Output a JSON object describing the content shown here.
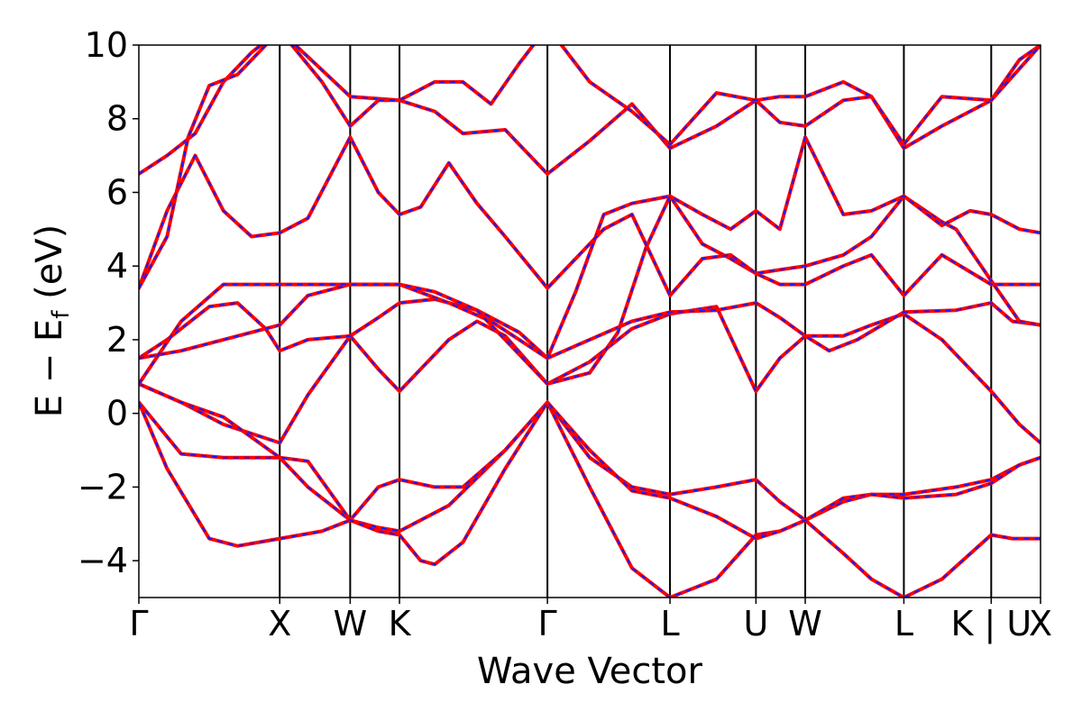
{
  "chart_data": {
    "type": "line",
    "title": "",
    "xlabel": "Wave Vector",
    "ylabel_parts": {
      "main": "E − E",
      "sub": "f",
      "unit": " (eV)"
    },
    "ylim": [
      -5,
      10
    ],
    "yticks": [
      {
        "value": 10,
        "label": "10"
      },
      {
        "value": 8,
        "label": "8"
      },
      {
        "value": 6,
        "label": "6"
      },
      {
        "value": 4,
        "label": "4"
      },
      {
        "value": 2,
        "label": "2"
      },
      {
        "value": 0,
        "label": "0"
      },
      {
        "value": -2,
        "label": "−2"
      },
      {
        "value": -4,
        "label": "−4"
      }
    ],
    "xlim": [
      0,
      6.4
    ],
    "kpoints": [
      {
        "label": "Γ",
        "x": 0.0
      },
      {
        "label": "X",
        "x": 1.0
      },
      {
        "label": "W",
        "x": 1.5
      },
      {
        "label": "K",
        "x": 1.85
      },
      {
        "label": "Γ",
        "x": 2.9
      },
      {
        "label": "L",
        "x": 3.77
      },
      {
        "label": "U",
        "x": 4.38
      },
      {
        "label": "W",
        "x": 4.73
      },
      {
        "label": "L",
        "x": 5.43
      },
      {
        "label": "K | U",
        "x": 6.05
      },
      {
        "label": "X",
        "x": 6.4
      }
    ],
    "grid": false,
    "series": [
      {
        "name": "",
        "points": [
          [
            0,
            0.3
          ],
          [
            0.3,
            -1.1
          ],
          [
            0.6,
            -1.2
          ],
          [
            1.0,
            -1.2
          ],
          [
            1.2,
            -2.0
          ],
          [
            1.5,
            -2.9
          ],
          [
            1.7,
            -3.1
          ],
          [
            1.85,
            -3.2
          ],
          [
            2.2,
            -2.5
          ],
          [
            2.6,
            -1.0
          ],
          [
            2.9,
            0.3
          ],
          [
            3.2,
            -1.2
          ],
          [
            3.5,
            -2.0
          ],
          [
            3.77,
            -2.2
          ],
          [
            4.1,
            -2.0
          ],
          [
            4.38,
            -1.8
          ],
          [
            4.55,
            -2.4
          ],
          [
            4.73,
            -2.9
          ],
          [
            5.0,
            -2.4
          ],
          [
            5.2,
            -2.2
          ],
          [
            5.43,
            -2.2
          ],
          [
            5.8,
            -2.0
          ],
          [
            6.05,
            -1.8
          ],
          [
            6.25,
            -1.4
          ],
          [
            6.4,
            -1.2
          ]
        ]
      },
      {
        "name": "",
        "points": [
          [
            0,
            0.3
          ],
          [
            0.2,
            -1.5
          ],
          [
            0.5,
            -3.4
          ],
          [
            0.7,
            -3.6
          ],
          [
            1.0,
            -3.4
          ],
          [
            1.3,
            -3.2
          ],
          [
            1.5,
            -2.9
          ],
          [
            1.7,
            -2.0
          ],
          [
            1.85,
            -1.8
          ],
          [
            2.1,
            -2.0
          ],
          [
            2.3,
            -2.0
          ],
          [
            2.6,
            -1.0
          ],
          [
            2.9,
            0.3
          ],
          [
            3.2,
            -2.0
          ],
          [
            3.5,
            -4.2
          ],
          [
            3.77,
            -5.0
          ],
          [
            4.1,
            -4.5
          ],
          [
            4.38,
            -3.3
          ],
          [
            4.55,
            -3.2
          ],
          [
            4.73,
            -2.9
          ],
          [
            5.0,
            -3.8
          ],
          [
            5.2,
            -4.5
          ],
          [
            5.43,
            -5.0
          ],
          [
            5.7,
            -4.5
          ],
          [
            6.05,
            -3.3
          ],
          [
            6.2,
            -3.4
          ],
          [
            6.4,
            -3.4
          ]
        ]
      },
      {
        "name": "",
        "points": [
          [
            0,
            0.8
          ],
          [
            0.3,
            0.3
          ],
          [
            0.6,
            -0.3
          ],
          [
            1.0,
            -0.8
          ],
          [
            1.2,
            0.5
          ],
          [
            1.5,
            2.1
          ],
          [
            1.7,
            1.2
          ],
          [
            1.85,
            0.6
          ],
          [
            2.0,
            1.2
          ],
          [
            2.2,
            2.0
          ],
          [
            2.4,
            2.5
          ],
          [
            2.6,
            2.1
          ],
          [
            2.9,
            0.8
          ],
          [
            3.2,
            1.4
          ],
          [
            3.5,
            2.3
          ],
          [
            3.77,
            2.7
          ],
          [
            4.1,
            2.9
          ],
          [
            4.38,
            0.6
          ],
          [
            4.55,
            1.5
          ],
          [
            4.73,
            2.1
          ],
          [
            5.0,
            2.1
          ],
          [
            5.2,
            2.4
          ],
          [
            5.43,
            2.7
          ],
          [
            5.7,
            2.0
          ],
          [
            6.05,
            0.6
          ],
          [
            6.25,
            -0.3
          ],
          [
            6.4,
            -0.8
          ]
        ]
      },
      {
        "name": "",
        "points": [
          [
            0,
            0.8
          ],
          [
            0.3,
            0.3
          ],
          [
            0.6,
            -0.1
          ],
          [
            1.0,
            -1.2
          ],
          [
            1.2,
            -1.3
          ],
          [
            1.5,
            -2.9
          ],
          [
            1.7,
            -3.2
          ],
          [
            1.85,
            -3.3
          ],
          [
            2.0,
            -4.0
          ],
          [
            2.1,
            -4.1
          ],
          [
            2.3,
            -3.5
          ],
          [
            2.6,
            -1.5
          ],
          [
            2.9,
            0.3
          ],
          [
            3.2,
            -1.0
          ],
          [
            3.5,
            -2.1
          ],
          [
            3.77,
            -2.3
          ],
          [
            4.1,
            -2.8
          ],
          [
            4.38,
            -3.4
          ],
          [
            4.55,
            -3.2
          ],
          [
            4.73,
            -2.9
          ],
          [
            5.0,
            -2.3
          ],
          [
            5.2,
            -2.2
          ],
          [
            5.43,
            -2.3
          ],
          [
            5.8,
            -2.2
          ],
          [
            6.05,
            -1.9
          ],
          [
            6.25,
            -1.4
          ],
          [
            6.4,
            -1.2
          ]
        ]
      },
      {
        "name": "",
        "points": [
          [
            0,
            1.5
          ],
          [
            0.2,
            2.0
          ],
          [
            0.5,
            2.9
          ],
          [
            0.7,
            3.0
          ],
          [
            0.9,
            2.3
          ],
          [
            1.0,
            1.7
          ],
          [
            1.2,
            2.0
          ],
          [
            1.5,
            2.1
          ],
          [
            1.7,
            2.6
          ],
          [
            1.85,
            3.0
          ],
          [
            2.1,
            3.1
          ],
          [
            2.4,
            2.8
          ],
          [
            2.7,
            2.2
          ],
          [
            2.9,
            1.5
          ],
          [
            3.2,
            2.0
          ],
          [
            3.5,
            2.5
          ],
          [
            3.77,
            2.75
          ],
          [
            4.1,
            2.8
          ],
          [
            4.38,
            3.0
          ],
          [
            4.55,
            2.6
          ],
          [
            4.73,
            2.1
          ],
          [
            4.9,
            1.7
          ],
          [
            5.1,
            2.0
          ],
          [
            5.43,
            2.75
          ],
          [
            5.8,
            2.8
          ],
          [
            6.05,
            3.0
          ],
          [
            6.2,
            2.5
          ],
          [
            6.4,
            2.4
          ]
        ]
      },
      {
        "name": "",
        "points": [
          [
            0,
            1.5
          ],
          [
            0.3,
            1.7
          ],
          [
            0.6,
            2.0
          ],
          [
            1.0,
            2.4
          ],
          [
            1.2,
            3.2
          ],
          [
            1.5,
            3.5
          ],
          [
            1.85,
            3.5
          ],
          [
            2.2,
            3.0
          ],
          [
            2.5,
            2.5
          ],
          [
            2.9,
            1.5
          ],
          [
            3.1,
            3.3
          ],
          [
            3.3,
            5.4
          ],
          [
            3.5,
            5.7
          ],
          [
            3.77,
            5.9
          ],
          [
            4.0,
            4.6
          ],
          [
            4.2,
            4.2
          ],
          [
            4.38,
            3.8
          ],
          [
            4.55,
            3.9
          ],
          [
            4.73,
            4.0
          ],
          [
            5.0,
            4.3
          ],
          [
            5.2,
            4.8
          ],
          [
            5.43,
            5.9
          ],
          [
            5.7,
            5.2
          ],
          [
            5.8,
            5.0
          ],
          [
            6.05,
            3.6
          ],
          [
            6.25,
            2.5
          ],
          [
            6.4,
            2.4
          ]
        ]
      },
      {
        "name": "",
        "points": [
          [
            0,
            0.8
          ],
          [
            0.3,
            2.5
          ],
          [
            0.6,
            3.5
          ],
          [
            1.0,
            3.5
          ],
          [
            1.2,
            3.5
          ],
          [
            1.5,
            3.5
          ],
          [
            1.85,
            3.5
          ],
          [
            2.1,
            3.3
          ],
          [
            2.4,
            2.8
          ],
          [
            2.9,
            0.8
          ],
          [
            3.2,
            1.1
          ],
          [
            3.4,
            2.2
          ],
          [
            3.6,
            4.5
          ],
          [
            3.77,
            5.9
          ],
          [
            4.0,
            5.4
          ],
          [
            4.2,
            5.0
          ],
          [
            4.38,
            5.5
          ],
          [
            4.55,
            5.0
          ],
          [
            4.73,
            7.5
          ],
          [
            5.0,
            5.4
          ],
          [
            5.2,
            5.5
          ],
          [
            5.43,
            5.9
          ],
          [
            5.7,
            5.1
          ],
          [
            5.9,
            5.5
          ],
          [
            6.05,
            5.4
          ],
          [
            6.25,
            5.0
          ],
          [
            6.4,
            4.9
          ]
        ]
      },
      {
        "name": "",
        "points": [
          [
            0,
            3.4
          ],
          [
            0.2,
            5.5
          ],
          [
            0.4,
            7.0
          ],
          [
            0.6,
            5.5
          ],
          [
            0.8,
            4.8
          ],
          [
            1.0,
            4.9
          ],
          [
            1.2,
            5.3
          ],
          [
            1.5,
            7.5
          ],
          [
            1.7,
            6.0
          ],
          [
            1.85,
            5.4
          ],
          [
            2.0,
            5.6
          ],
          [
            2.2,
            6.8
          ],
          [
            2.4,
            5.7
          ],
          [
            2.6,
            4.8
          ],
          [
            2.9,
            3.4
          ],
          [
            3.1,
            4.2
          ],
          [
            3.3,
            5.0
          ],
          [
            3.5,
            5.4
          ],
          [
            3.77,
            3.2
          ],
          [
            4.0,
            4.2
          ],
          [
            4.2,
            4.3
          ],
          [
            4.38,
            3.8
          ],
          [
            4.55,
            3.5
          ],
          [
            4.73,
            3.5
          ],
          [
            5.0,
            4.0
          ],
          [
            5.2,
            4.3
          ],
          [
            5.43,
            3.2
          ],
          [
            5.7,
            4.3
          ],
          [
            6.05,
            3.5
          ],
          [
            6.25,
            3.5
          ],
          [
            6.4,
            3.5
          ]
        ]
      },
      {
        "name": "",
        "points": [
          [
            0,
            6.5
          ],
          [
            0.2,
            7.0
          ],
          [
            0.4,
            7.6
          ],
          [
            0.6,
            9.0
          ],
          [
            0.8,
            9.8
          ],
          [
            1.0,
            10.4
          ],
          [
            1.5,
            8.6
          ],
          [
            1.85,
            8.5
          ],
          [
            2.1,
            8.2
          ],
          [
            2.3,
            7.6
          ],
          [
            2.6,
            7.7
          ],
          [
            2.9,
            6.5
          ],
          [
            3.2,
            7.4
          ],
          [
            3.5,
            8.4
          ],
          [
            3.77,
            7.2
          ],
          [
            4.1,
            7.8
          ],
          [
            4.38,
            8.5
          ],
          [
            4.55,
            7.9
          ],
          [
            4.73,
            7.8
          ],
          [
            5.0,
            8.5
          ],
          [
            5.2,
            8.6
          ],
          [
            5.43,
            7.2
          ],
          [
            5.7,
            7.8
          ],
          [
            6.05,
            8.5
          ],
          [
            6.25,
            9.6
          ],
          [
            6.4,
            10.0
          ]
        ]
      },
      {
        "name": "",
        "points": [
          [
            0,
            3.4
          ],
          [
            0.2,
            4.8
          ],
          [
            0.35,
            7.5
          ],
          [
            0.5,
            8.9
          ],
          [
            0.7,
            9.2
          ],
          [
            1.0,
            10.4
          ],
          [
            1.3,
            9.0
          ],
          [
            1.5,
            7.8
          ],
          [
            1.7,
            8.5
          ],
          [
            1.85,
            8.5
          ],
          [
            2.1,
            9.0
          ],
          [
            2.3,
            9.0
          ],
          [
            2.5,
            8.4
          ],
          [
            2.7,
            9.5
          ],
          [
            2.9,
            10.5
          ],
          [
            3.2,
            9.0
          ],
          [
            3.5,
            8.2
          ],
          [
            3.77,
            7.3
          ],
          [
            4.1,
            8.7
          ],
          [
            4.38,
            8.5
          ],
          [
            4.55,
            8.6
          ],
          [
            4.73,
            8.6
          ],
          [
            5.0,
            9.0
          ],
          [
            5.2,
            8.6
          ],
          [
            5.43,
            7.3
          ],
          [
            5.7,
            8.6
          ],
          [
            6.05,
            8.5
          ],
          [
            6.4,
            10.0
          ]
        ]
      }
    ]
  }
}
